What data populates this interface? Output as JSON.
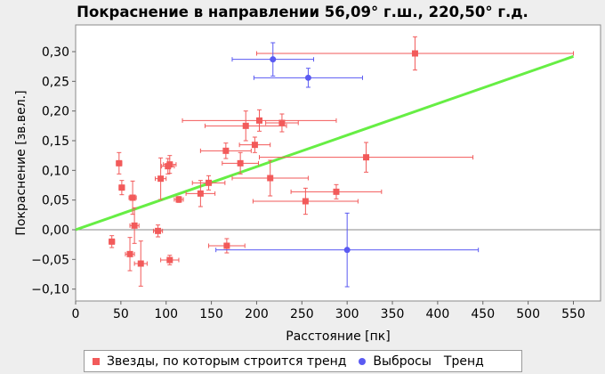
{
  "chart_data": {
    "type": "scatter",
    "title": "Покраснение в направлении 56,09° г.ш., 220,50° г.д.",
    "xlabel": "Расстояние [пк]",
    "ylabel": "Покраснение [зв.вел.]",
    "xlim": [
      0,
      580
    ],
    "ylim": [
      -0.12,
      0.345
    ],
    "x_ticks": [
      0,
      50,
      100,
      150,
      200,
      250,
      300,
      350,
      400,
      450,
      500,
      550
    ],
    "y_ticks": [
      -0.1,
      -0.05,
      0.0,
      0.05,
      0.1,
      0.15,
      0.2,
      0.25,
      0.3
    ],
    "x_tick_labels": [
      "0",
      "50",
      "100",
      "150",
      "200",
      "250",
      "300",
      "350",
      "400",
      "450",
      "500",
      "550"
    ],
    "y_tick_labels": [
      "−0,10",
      "−0,05",
      "0,00",
      "0,05",
      "0,10",
      "0,15",
      "0,20",
      "0,25",
      "0,30"
    ],
    "grid": false,
    "legend_position": "bottom",
    "colors": {
      "stars": "#f25a5a",
      "outliers": "#5a5af2",
      "trend": "#66ee44",
      "zero_line": "#888888"
    },
    "series": [
      {
        "name": "Звезды, по которым строится тренд",
        "marker": "square",
        "points": [
          {
            "x": 40,
            "y": -0.02,
            "xerr": 3,
            "yerr": 0.01
          },
          {
            "x": 48,
            "y": 0.112,
            "xerr": 3,
            "yerr": 0.018
          },
          {
            "x": 51,
            "y": 0.071,
            "xerr": 3,
            "yerr": 0.012
          },
          {
            "x": 60,
            "y": -0.041,
            "xerr": 5,
            "yerr": 0.028
          },
          {
            "x": 63,
            "y": 0.054,
            "xerr": 4,
            "yerr": 0.028
          },
          {
            "x": 65,
            "y": 0.007,
            "xerr": 5,
            "yerr": 0.03
          },
          {
            "x": 72,
            "y": -0.057,
            "xerr": 7,
            "yerr": 0.038
          },
          {
            "x": 91,
            "y": -0.002,
            "xerr": 5,
            "yerr": 0.01
          },
          {
            "x": 94,
            "y": 0.086,
            "xerr": 6,
            "yerr": 0.035
          },
          {
            "x": 102,
            "y": 0.107,
            "xerr": 7,
            "yerr": 0.013
          },
          {
            "x": 104,
            "y": 0.11,
            "xerr": 7,
            "yerr": 0.015
          },
          {
            "x": 104,
            "y": -0.051,
            "xerr": 10,
            "yerr": 0.008
          },
          {
            "x": 114,
            "y": 0.051,
            "xerr": 5,
            "yerr": 0.005
          },
          {
            "x": 138,
            "y": 0.061,
            "xerr": 16,
            "yerr": 0.022
          },
          {
            "x": 147,
            "y": 0.079,
            "xerr": 18,
            "yerr": 0.012
          },
          {
            "x": 166,
            "y": 0.133,
            "xerr": 28,
            "yerr": 0.013
          },
          {
            "x": 167,
            "y": -0.027,
            "xerr": 20,
            "yerr": 0.012
          },
          {
            "x": 182,
            "y": 0.112,
            "xerr": 20,
            "yerr": 0.018
          },
          {
            "x": 188,
            "y": 0.175,
            "xerr": 45,
            "yerr": 0.025
          },
          {
            "x": 198,
            "y": 0.143,
            "xerr": 17,
            "yerr": 0.013
          },
          {
            "x": 203,
            "y": 0.184,
            "xerr": 85,
            "yerr": 0.018
          },
          {
            "x": 215,
            "y": 0.087,
            "xerr": 42,
            "yerr": 0.03
          },
          {
            "x": 228,
            "y": 0.18,
            "xerr": 18,
            "yerr": 0.015
          },
          {
            "x": 254,
            "y": 0.048,
            "xerr": 58,
            "yerr": 0.022
          },
          {
            "x": 288,
            "y": 0.064,
            "xerr": 50,
            "yerr": 0.012
          },
          {
            "x": 321,
            "y": 0.122,
            "xerr": 118,
            "yerr": 0.025
          },
          {
            "x": 375,
            "y": 0.297,
            "xerr": 175,
            "yerr": 0.028
          }
        ]
      },
      {
        "name": "Выбросы",
        "marker": "circle",
        "points": [
          {
            "x": 218,
            "y": 0.287,
            "xerr": 45,
            "yerr": 0.028
          },
          {
            "x": 257,
            "y": 0.256,
            "xerr": 60,
            "yerr": 0.016
          },
          {
            "x": 300,
            "y": -0.034,
            "xerr": 145,
            "yerr": 0.062
          }
        ]
      },
      {
        "name": "Тренд",
        "marker": "line",
        "points": [
          {
            "x": 0,
            "y": 0.0
          },
          {
            "x": 550,
            "y": 0.292
          }
        ]
      }
    ]
  }
}
